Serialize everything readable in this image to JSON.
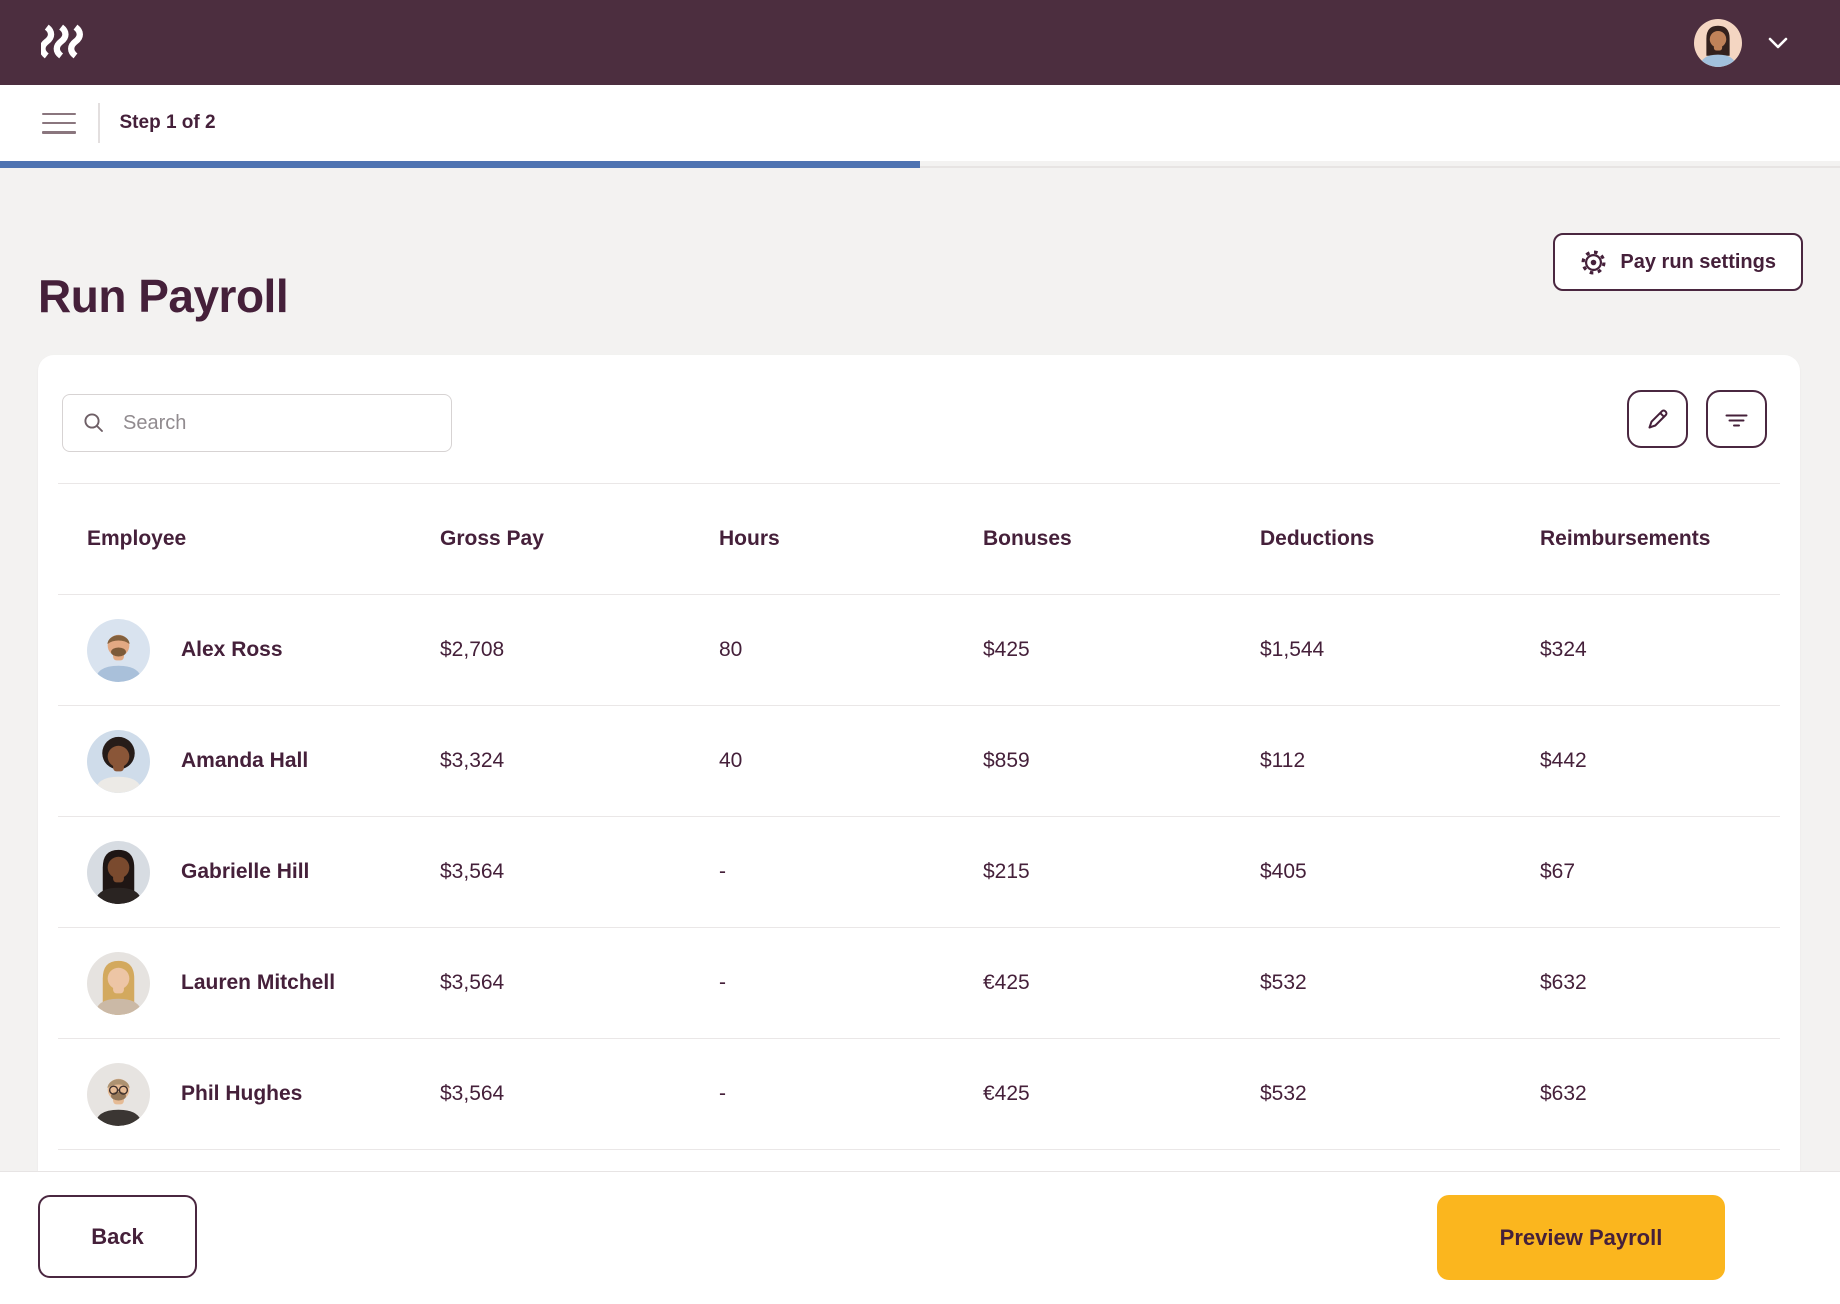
{
  "topbar": {
    "user": {
      "avatar": {
        "bg": "#f4d6c2",
        "skin": "#c08259",
        "hair": "#33211d",
        "shirt": "#a2c1dd",
        "hair_style": "bob"
      }
    }
  },
  "subheader": {
    "step_label": "Step 1 of 2",
    "progress_percent": 50
  },
  "header": {
    "title": "Run Payroll",
    "settings_button_label": "Pay run settings"
  },
  "toolbar": {
    "search_placeholder": "Search"
  },
  "table": {
    "columns": [
      "Employee",
      "Gross Pay",
      "Hours",
      "Bonuses",
      "Deductions",
      "Reimbursements"
    ],
    "rows": [
      {
        "name": "Alex Ross",
        "gross_pay": "$2,708",
        "hours": "80",
        "bonuses": "$425",
        "deductions": "$1,544",
        "reimbursements": "$324",
        "avatar": {
          "bg": "#d9e3ef",
          "skin": "#e3a983",
          "hair": "#83603d",
          "beard": "#7c5a39",
          "shirt": "#a9c0da",
          "hair_style": "short"
        }
      },
      {
        "name": "Amanda Hall",
        "gross_pay": "$3,324",
        "hours": "40",
        "bonuses": "$859",
        "deductions": "$112",
        "reimbursements": "$442",
        "avatar": {
          "bg": "#cfdcea",
          "skin": "#8a5638",
          "hair": "#261c19",
          "shirt": "#eceae6",
          "hair_style": "afro"
        }
      },
      {
        "name": "Gabrielle Hill",
        "gross_pay": "$3,564",
        "hours": "-",
        "bonuses": "$215",
        "deductions": "$405",
        "reimbursements": "$67",
        "avatar": {
          "bg": "#d7dce2",
          "skin": "#7a4a2e",
          "hair": "#1f1614",
          "shirt": "#2a2422",
          "hair_style": "long"
        }
      },
      {
        "name": "Lauren Mitchell",
        "gross_pay": "$3,564",
        "hours": "-",
        "bonuses": "€425",
        "deductions": "$532",
        "reimbursements": "$632",
        "avatar": {
          "bg": "#e6e3e0",
          "skin": "#edc5a5",
          "hair": "#d3a95e",
          "shirt": "#cbb9a6",
          "hair_style": "long"
        }
      },
      {
        "name": "Phil Hughes",
        "gross_pay": "$3,564",
        "hours": "-",
        "bonuses": "€425",
        "deductions": "$532",
        "reimbursements": "$632",
        "avatar": {
          "bg": "#e7e4e1",
          "skin": "#e6bb95",
          "hair": "#ad9271",
          "beard": "#96795a",
          "shirt": "#3b3633",
          "hair_style": "short",
          "glasses": true
        }
      }
    ]
  },
  "footer": {
    "back_label": "Back",
    "preview_label": "Preview Payroll"
  },
  "colors": {
    "topbar": "#4c2e3f",
    "text_plum": "#45203a",
    "progress_blue": "#4e73b1",
    "primary_button_yellow": "#fbb61e",
    "page_background": "#f3f2f1"
  },
  "icons": {
    "logo": "rippling-waves",
    "menu": "hamburger",
    "user_menu": "chevron-down",
    "search": "magnifier",
    "edit": "pencil",
    "filter": "filter-lines",
    "settings": "gear"
  }
}
